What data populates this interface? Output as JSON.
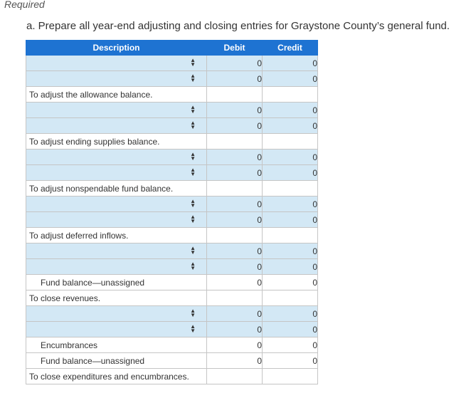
{
  "header": {
    "required": "Required",
    "instruction": "a. Prepare all year-end adjusting and closing entries for Graystone County’s general fund."
  },
  "table": {
    "columns": {
      "description": "Description",
      "debit": "Debit",
      "credit": "Credit"
    },
    "rows": [
      {
        "kind": "entry",
        "debit": "0",
        "credit": "0"
      },
      {
        "kind": "entry",
        "debit": "0",
        "credit": "0"
      },
      {
        "kind": "memo",
        "text": "To adjust the allowance balance."
      },
      {
        "kind": "entry",
        "debit": "0",
        "credit": "0"
      },
      {
        "kind": "entry",
        "debit": "0",
        "credit": "0"
      },
      {
        "kind": "memo",
        "text": "To adjust ending supplies balance."
      },
      {
        "kind": "entry",
        "debit": "0",
        "credit": "0"
      },
      {
        "kind": "entry",
        "debit": "0",
        "credit": "0"
      },
      {
        "kind": "memo",
        "text": "To adjust nonspendable fund balance."
      },
      {
        "kind": "entry",
        "debit": "0",
        "credit": "0"
      },
      {
        "kind": "entry",
        "debit": "0",
        "credit": "0"
      },
      {
        "kind": "memo",
        "text": "To adjust deferred inflows."
      },
      {
        "kind": "entry",
        "debit": "0",
        "credit": "0"
      },
      {
        "kind": "entry",
        "debit": "0",
        "credit": "0"
      },
      {
        "kind": "fixed",
        "text": "Fund balance—unassigned",
        "debit": "0",
        "credit": "0"
      },
      {
        "kind": "memo",
        "text": "To close revenues."
      },
      {
        "kind": "entry",
        "debit": "0",
        "credit": "0"
      },
      {
        "kind": "entry",
        "debit": "0",
        "credit": "0"
      },
      {
        "kind": "fixed",
        "text": "Encumbrances",
        "debit": "0",
        "credit": "0"
      },
      {
        "kind": "fixed",
        "text": "Fund balance—unassigned",
        "debit": "0",
        "credit": "0"
      },
      {
        "kind": "memo",
        "text": "To close expenditures and encumbrances."
      }
    ]
  },
  "icons": {
    "dropdown": "sort-arrows-icon"
  },
  "colors": {
    "header_bg": "#1e73d2",
    "entry_bg": "#d3e8f5"
  }
}
